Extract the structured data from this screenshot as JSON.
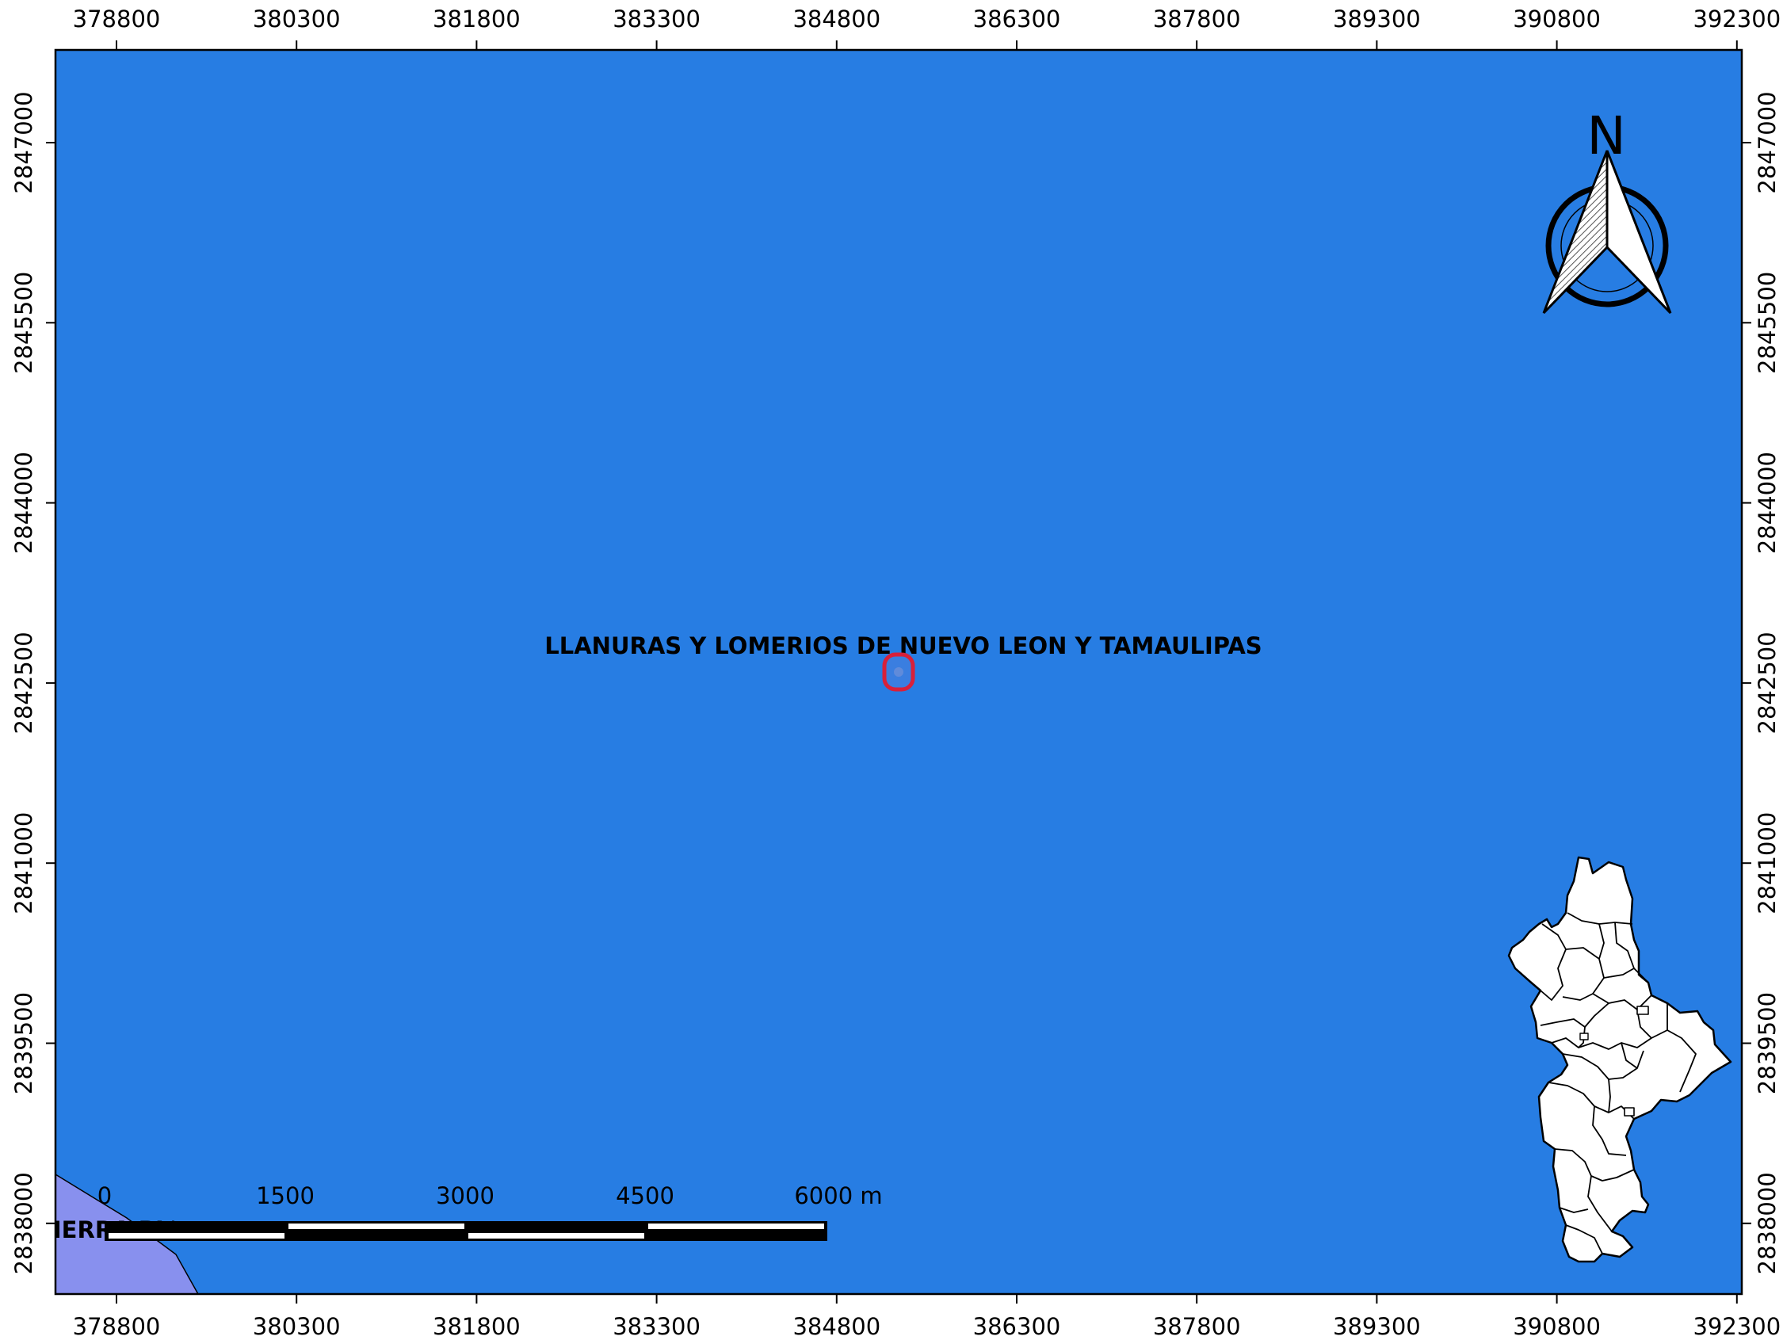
{
  "map": {
    "colors": {
      "frame_background": "#ffffff",
      "region_fill": "#277de3",
      "adjacent_region_fill": "#8890ee",
      "marker_stroke": "#e0233a",
      "inset_fill": "#ffffff"
    },
    "x_axis": {
      "ticks": [
        "378800",
        "380300",
        "381800",
        "383300",
        "384800",
        "386300",
        "387800",
        "389300",
        "390800",
        "392300"
      ]
    },
    "y_axis": {
      "ticks": [
        "2847000",
        "2845500",
        "2844000",
        "2842500",
        "2841000",
        "2839500",
        "2838000"
      ]
    },
    "region_label": "LLANURAS Y LOMERIOS DE NUEVO LEON Y TAMAULIPAS",
    "adjacent_region_label": "SIERRA PLEGADA",
    "marker": {
      "easting": 385000,
      "northing": 2842600,
      "icon": "location-marker-icon"
    },
    "north_arrow": {
      "letter": "N",
      "icon": "north-arrow-icon"
    },
    "scale_bar": {
      "labels": [
        "0",
        "1500",
        "3000",
        "4500",
        "6000 m"
      ]
    },
    "inset_map": {
      "icon": "state-municipalities-inset-icon"
    }
  }
}
